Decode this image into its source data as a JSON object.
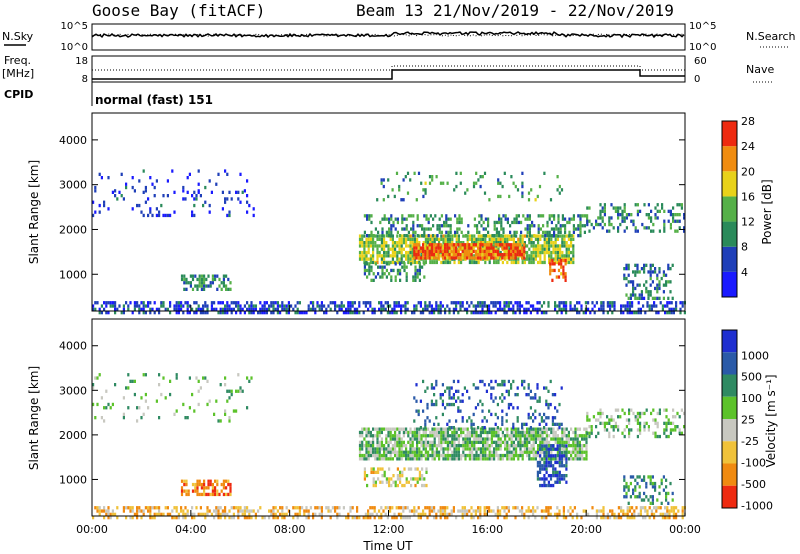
{
  "header": {
    "station": "Goose Bay (fitACF)",
    "beam": "Beam 13",
    "date_range": "21/Nov/2019 - 22/Nov/2019",
    "cpid_label": "CPID",
    "cpid_value": "normal (fast) 151"
  },
  "panels": {
    "noise": {
      "left_label": "N.Sky",
      "right_label": "N.Search",
      "left_ticks": [
        "10^5",
        "10^0"
      ],
      "right_ticks": [
        "10^5",
        "10^0"
      ]
    },
    "freq": {
      "left_label_1": "Freq.",
      "left_label_2": "[MHz]",
      "right_label": "Nave",
      "left_ticks": [
        "18",
        "8"
      ],
      "right_ticks": [
        "60",
        "0"
      ]
    }
  },
  "chart_data": [
    {
      "type": "heatmap",
      "name": "power",
      "ylabel": "Slant Range [km]",
      "ylim": [
        180,
        4600
      ],
      "xlim": [
        0,
        24
      ],
      "y_ticks": [
        "1000",
        "2000",
        "3000",
        "4000"
      ],
      "colorbar": {
        "label": "Power [dB]",
        "ticks": [
          "4",
          "8",
          "12",
          "16",
          "20",
          "24",
          "28"
        ],
        "colors": [
          "#1a1aff",
          "#1f3fb8",
          "#2a8a5a",
          "#55b048",
          "#e8d21a",
          "#f08c10",
          "#ee2a10"
        ]
      },
      "regions": [
        {
          "t0": 0.0,
          "t1": 24.0,
          "r0": 180,
          "r1": 420,
          "density": 0.55,
          "level": 0.2
        },
        {
          "t0": 0.0,
          "t1": 6.5,
          "r0": 2350,
          "r1": 2900,
          "density": 0.12,
          "level": 0.15
        },
        {
          "t0": 0.0,
          "t1": 6.5,
          "r0": 2900,
          "r1": 3400,
          "density": 0.08,
          "level": 0.15
        },
        {
          "t0": 3.6,
          "t1": 5.6,
          "r0": 700,
          "r1": 1000,
          "density": 0.5,
          "level": 0.35
        },
        {
          "t0": 10.8,
          "t1": 19.5,
          "r0": 1300,
          "r1": 1900,
          "density": 0.8,
          "level": 0.55
        },
        {
          "t0": 13.0,
          "t1": 17.5,
          "r0": 1400,
          "r1": 1750,
          "density": 0.9,
          "level": 0.85
        },
        {
          "t0": 11.0,
          "t1": 20.0,
          "r0": 1900,
          "r1": 2400,
          "density": 0.4,
          "level": 0.4
        },
        {
          "t0": 11.0,
          "t1": 13.5,
          "r0": 900,
          "r1": 1300,
          "density": 0.4,
          "level": 0.4
        },
        {
          "t0": 11.5,
          "t1": 19.0,
          "r0": 2700,
          "r1": 3300,
          "density": 0.12,
          "level": 0.4
        },
        {
          "t0": 18.5,
          "t1": 19.2,
          "r0": 900,
          "r1": 1400,
          "density": 0.6,
          "level": 0.85
        },
        {
          "t0": 20.0,
          "t1": 24.0,
          "r0": 2000,
          "r1": 2600,
          "density": 0.35,
          "level": 0.35
        },
        {
          "t0": 21.5,
          "t1": 23.5,
          "r0": 500,
          "r1": 1300,
          "density": 0.35,
          "level": 0.3
        }
      ]
    },
    {
      "type": "heatmap",
      "name": "velocity",
      "xlabel": "Time UT",
      "ylabel": "Slant Range [km]",
      "ylim": [
        180,
        4600
      ],
      "xlim": [
        0,
        24
      ],
      "x_ticks": [
        "00:00",
        "04:00",
        "08:00",
        "12:00",
        "16:00",
        "20:00",
        "00:00"
      ],
      "y_ticks": [
        "1000",
        "2000",
        "3000",
        "4000"
      ],
      "colorbar": {
        "label": "Velocity [m s⁻¹]",
        "ticks": [
          "1000",
          "500",
          "100",
          "25",
          "-25",
          "-100",
          "-500",
          "-1000"
        ],
        "colors": [
          "#1f2fd0",
          "#2a5aa8",
          "#2f8a62",
          "#5cc22a",
          "#c8c8c0",
          "#f0c23a",
          "#f08a10",
          "#ee2a10"
        ]
      },
      "regions": [
        {
          "t0": 0.0,
          "t1": 24.0,
          "r0": 180,
          "r1": 420,
          "density": 0.5,
          "level": 0.7
        },
        {
          "t0": 0.0,
          "t1": 6.5,
          "r0": 2350,
          "r1": 3400,
          "density": 0.09,
          "level": 0.45
        },
        {
          "t0": 3.6,
          "t1": 5.6,
          "r0": 700,
          "r1": 1000,
          "density": 0.6,
          "level": 0.85
        },
        {
          "t0": 10.8,
          "t1": 20.0,
          "r0": 1500,
          "r1": 2200,
          "density": 0.8,
          "level": 0.45
        },
        {
          "t0": 11.0,
          "t1": 13.5,
          "r0": 900,
          "r1": 1300,
          "density": 0.5,
          "level": 0.6
        },
        {
          "t0": 13.0,
          "t1": 19.0,
          "r0": 2200,
          "r1": 3300,
          "density": 0.2,
          "level": 0.2
        },
        {
          "t0": 18.0,
          "t1": 19.2,
          "r0": 900,
          "r1": 1800,
          "density": 0.6,
          "level": 0.15
        },
        {
          "t0": 20.0,
          "t1": 24.0,
          "r0": 2000,
          "r1": 2600,
          "density": 0.3,
          "level": 0.45
        },
        {
          "t0": 21.5,
          "t1": 23.5,
          "r0": 500,
          "r1": 1100,
          "density": 0.35,
          "level": 0.3
        }
      ]
    }
  ]
}
